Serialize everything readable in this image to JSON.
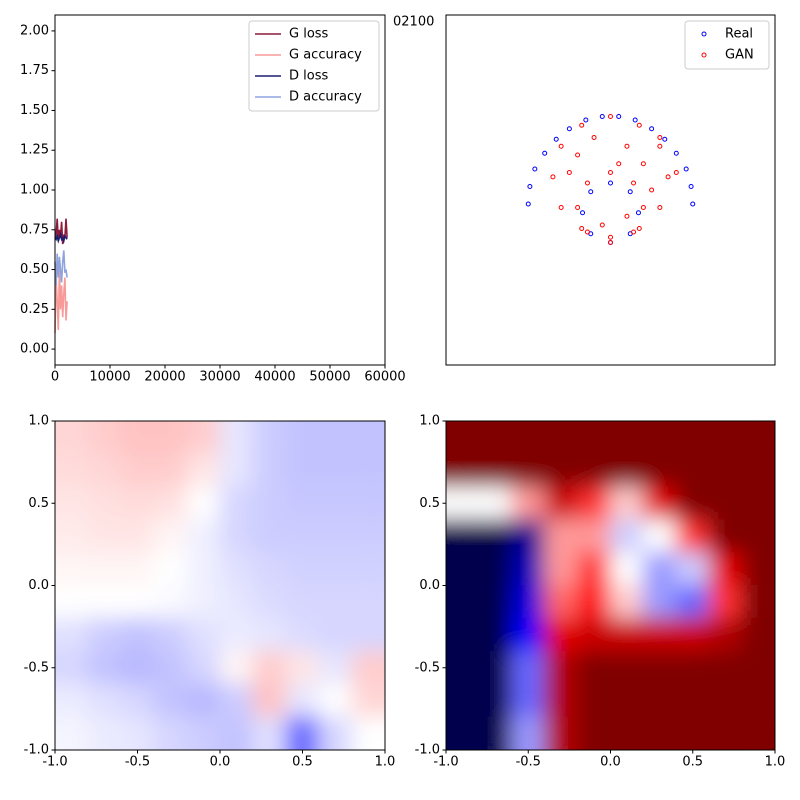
{
  "chart_data": [
    {
      "type": "line",
      "annotation": "02100",
      "x": [
        0,
        200,
        400,
        600,
        800,
        1000,
        1200,
        1400,
        1600,
        1800,
        2000,
        2200
      ],
      "series": [
        {
          "name": "G loss",
          "color": "#8b1a3c",
          "values": [
            0.7,
            0.72,
            0.82,
            0.68,
            0.75,
            0.7,
            0.8,
            0.66,
            0.72,
            0.7,
            0.82,
            0.7
          ]
        },
        {
          "name": "G accuracy",
          "color": "#f79a98",
          "values": [
            0.1,
            0.45,
            0.3,
            0.12,
            0.5,
            0.25,
            0.4,
            0.2,
            0.35,
            0.45,
            0.18,
            0.3
          ]
        },
        {
          "name": "D loss",
          "color": "#1b1f6e",
          "values": [
            0.7,
            0.69,
            0.71,
            0.68,
            0.7,
            0.72,
            0.69,
            0.7,
            0.68,
            0.71,
            0.7,
            0.69
          ]
        },
        {
          "name": "D accuracy",
          "color": "#8fa3dd",
          "values": [
            0.55,
            0.4,
            0.6,
            0.45,
            0.58,
            0.5,
            0.42,
            0.55,
            0.62,
            0.48,
            0.5,
            0.45
          ]
        }
      ],
      "xlim": [
        0,
        60000
      ],
      "xticks": [
        0,
        10000,
        20000,
        30000,
        40000,
        50000,
        60000
      ],
      "ylim": [
        -0.1,
        2.1
      ],
      "yticks": [
        {
          "value": 0,
          "label": "0.00"
        },
        {
          "value": 0.25,
          "label": "0.25"
        },
        {
          "value": 0.5,
          "label": "0.50"
        },
        {
          "value": 0.75,
          "label": "0.75"
        },
        {
          "value": 1,
          "label": "1.00"
        },
        {
          "value": 1.25,
          "label": "1.25"
        },
        {
          "value": 1.5,
          "label": "1.50"
        },
        {
          "value": 1.75,
          "label": "1.75"
        },
        {
          "value": 2,
          "label": "2.00"
        }
      ],
      "legend": "upper right"
    },
    {
      "type": "scatter",
      "series": [
        {
          "name": "Real",
          "color": "#0000ff",
          "x": [
            0.5,
            0.49,
            0.46,
            0.4,
            0.33,
            0.25,
            0.15,
            0.05,
            -0.05,
            -0.15,
            -0.25,
            -0.33,
            -0.4,
            -0.46,
            -0.49,
            -0.5,
            0.17,
            0.12,
            0,
            -0.12,
            -0.17,
            -0.12,
            0,
            0.12
          ],
          "values": [
            -0.08,
            0.02,
            0.12,
            0.21,
            0.29,
            0.35,
            0.4,
            0.42,
            0.42,
            0.4,
            0.35,
            0.29,
            0.21,
            0.12,
            0.02,
            -0.08,
            -0.13,
            -0.01,
            0.04,
            -0.01,
            -0.13,
            -0.25,
            -0.3,
            -0.25
          ]
        },
        {
          "name": "GAN",
          "color": "#ff0000",
          "x": [
            0.35,
            0.3,
            0.175,
            0,
            -0.175,
            -0.3,
            -0.35,
            -0.3,
            -0.175,
            0,
            0.175,
            0.3,
            0.2,
            0.14,
            0,
            -0.14,
            -0.2,
            -0.14,
            0,
            0.14,
            0.1,
            -0.2,
            0.05,
            -0.1,
            0.2,
            0.3,
            0.4,
            -0.25,
            0.25,
            0.1,
            -0.05
          ],
          "values": [
            0.075,
            0.25,
            0.37,
            0.42,
            0.37,
            0.25,
            0.075,
            -0.1,
            -0.22,
            -0.27,
            -0.22,
            -0.1,
            -0.1,
            0.04,
            0.1,
            0.04,
            -0.1,
            -0.24,
            -0.3,
            -0.24,
            0.25,
            0.2,
            0.15,
            0.3,
            0.15,
            0.3,
            0.1,
            0.1,
            0,
            -0.15,
            -0.2
          ]
        }
      ],
      "xlim": [
        -1,
        1
      ],
      "ylim": [
        -1,
        1
      ],
      "legend": "upper right"
    },
    {
      "type": "heatmap",
      "colormap": "bwr",
      "zlim": [
        0,
        1
      ],
      "x": [
        -0.9,
        -0.7,
        -0.5,
        -0.3,
        -0.1,
        0.1,
        0.3,
        0.5,
        0.7,
        0.9
      ],
      "y": [
        0.9,
        0.7,
        0.5,
        0.3,
        0.1,
        -0.1,
        -0.3,
        -0.5,
        -0.7,
        -0.9
      ],
      "z": [
        [
          0.58,
          0.6,
          0.62,
          0.62,
          0.6,
          0.45,
          0.4,
          0.38,
          0.38,
          0.38
        ],
        [
          0.57,
          0.58,
          0.6,
          0.6,
          0.55,
          0.45,
          0.4,
          0.38,
          0.38,
          0.38
        ],
        [
          0.55,
          0.56,
          0.57,
          0.56,
          0.5,
          0.42,
          0.4,
          0.39,
          0.39,
          0.39
        ],
        [
          0.54,
          0.55,
          0.55,
          0.52,
          0.47,
          0.42,
          0.4,
          0.4,
          0.4,
          0.4
        ],
        [
          0.52,
          0.52,
          0.52,
          0.5,
          0.47,
          0.44,
          0.42,
          0.41,
          0.41,
          0.41
        ],
        [
          0.5,
          0.5,
          0.5,
          0.49,
          0.47,
          0.45,
          0.43,
          0.42,
          0.42,
          0.42
        ],
        [
          0.44,
          0.4,
          0.38,
          0.4,
          0.44,
          0.46,
          0.45,
          0.43,
          0.42,
          0.42
        ],
        [
          0.42,
          0.38,
          0.36,
          0.38,
          0.42,
          0.52,
          0.6,
          0.55,
          0.45,
          0.6
        ],
        [
          0.46,
          0.44,
          0.42,
          0.38,
          0.36,
          0.4,
          0.62,
          0.45,
          0.5,
          0.58
        ],
        [
          0.48,
          0.46,
          0.45,
          0.42,
          0.4,
          0.38,
          0.44,
          0.2,
          0.42,
          0.5
        ]
      ],
      "xlim": [
        -1,
        1
      ],
      "ylim": [
        -1,
        1
      ],
      "xticks": [
        {
          "value": -1,
          "label": "-1.0"
        },
        {
          "value": -0.5,
          "label": "-0.5"
        },
        {
          "value": 0,
          "label": "0.0"
        },
        {
          "value": 0.5,
          "label": "0.5"
        },
        {
          "value": 1,
          "label": "1.0"
        }
      ],
      "yticks": [
        {
          "value": -1,
          "label": "-1.0"
        },
        {
          "value": -0.5,
          "label": "-0.5"
        },
        {
          "value": 0,
          "label": "0.0"
        },
        {
          "value": 0.5,
          "label": "0.5"
        },
        {
          "value": 1,
          "label": "1.0"
        }
      ]
    },
    {
      "type": "heatmap",
      "colormap": "seismic",
      "zlim": [
        0,
        1
      ],
      "x": [
        -0.9,
        -0.7,
        -0.5,
        -0.3,
        -0.1,
        0.1,
        0.3,
        0.5,
        0.7,
        0.9
      ],
      "y": [
        0.9,
        0.7,
        0.5,
        0.3,
        0.1,
        -0.1,
        -0.3,
        -0.5,
        -0.7,
        -0.9
      ],
      "z": [
        [
          1,
          1,
          1,
          1,
          1,
          1,
          1,
          1,
          1,
          1
        ],
        [
          1,
          1,
          1,
          1,
          1,
          1,
          1,
          1,
          1,
          1
        ],
        [
          0.5,
          0.5,
          0.6,
          0.85,
          0.7,
          0.55,
          0.8,
          1,
          1,
          1
        ],
        [
          0,
          0,
          0.1,
          0.6,
          0.6,
          0.45,
          0.5,
          0.7,
          1,
          1
        ],
        [
          0,
          0,
          0.15,
          0.6,
          0.7,
          0.5,
          0.4,
          0.45,
          0.8,
          1
        ],
        [
          0,
          0,
          0.2,
          0.65,
          0.75,
          0.55,
          0.4,
          0.35,
          0.7,
          1
        ],
        [
          0,
          0,
          0.25,
          0.8,
          0.85,
          0.85,
          0.85,
          0.85,
          0.9,
          1
        ],
        [
          0,
          0,
          0.35,
          0.9,
          1,
          1,
          1,
          1,
          1,
          1
        ],
        [
          0,
          0,
          0.35,
          0.9,
          1,
          1,
          1,
          1,
          1,
          1
        ],
        [
          0,
          0,
          0.4,
          0.9,
          1,
          1,
          1,
          1,
          1,
          1
        ]
      ],
      "xlim": [
        -1,
        1
      ],
      "ylim": [
        -1,
        1
      ],
      "xticks": [
        {
          "value": -1,
          "label": "-1.0"
        },
        {
          "value": -0.5,
          "label": "-0.5"
        },
        {
          "value": 0,
          "label": "0.0"
        },
        {
          "value": 0.5,
          "label": "0.5"
        },
        {
          "value": 1,
          "label": "1.0"
        }
      ],
      "yticks": [
        {
          "value": -1,
          "label": "-1.0"
        },
        {
          "value": -0.5,
          "label": "-0.5"
        },
        {
          "value": 0,
          "label": "0.0"
        },
        {
          "value": 0.5,
          "label": "0.5"
        },
        {
          "value": 1,
          "label": "1.0"
        }
      ]
    }
  ]
}
